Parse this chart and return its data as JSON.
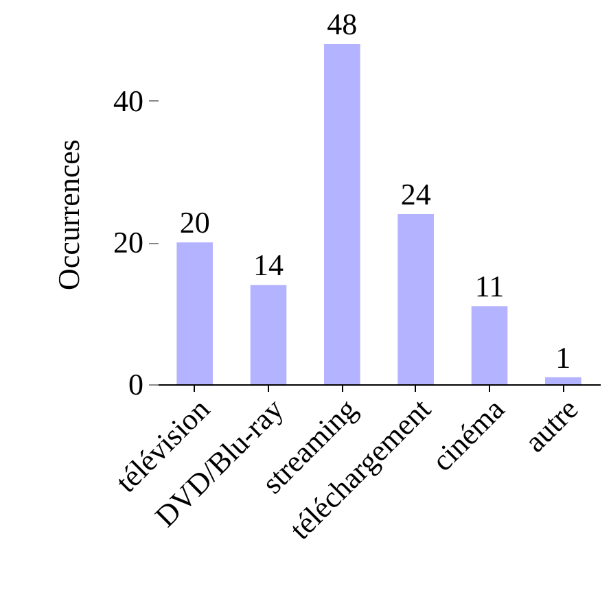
{
  "chart_data": {
    "type": "bar",
    "ylabel": "Occurrences",
    "categories": [
      "télévision",
      "DVD/Blu-ray",
      "streaming",
      "téléchargement",
      "cinéma",
      "autre"
    ],
    "values": [
      20,
      14,
      48,
      24,
      11,
      1
    ],
    "color": "#b3b3ff",
    "ylim": [
      0,
      48
    ],
    "yticks": [
      0,
      20,
      40
    ],
    "data_labels": true,
    "grid": false
  }
}
